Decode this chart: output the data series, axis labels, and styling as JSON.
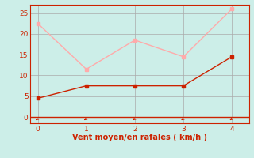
{
  "x": [
    0,
    1,
    2,
    3,
    4
  ],
  "y_wind_avg": [
    4.5,
    7.5,
    7.5,
    7.5,
    14.5
  ],
  "y_wind_gust": [
    22.5,
    11.5,
    18.5,
    14.5,
    26.0
  ],
  "line_color_avg": "#cc2200",
  "line_color_gust": "#ffaaaa",
  "marker_color_avg": "#cc2200",
  "marker_color_gust": "#ffaaaa",
  "xlabel": "Vent moyen/en rafales ( km/h )",
  "xlim": [
    -0.15,
    4.35
  ],
  "ylim": [
    -1.5,
    27
  ],
  "yticks": [
    0,
    5,
    10,
    15,
    20,
    25
  ],
  "xticks": [
    0,
    1,
    2,
    3,
    4
  ],
  "bg_color": "#cceee8",
  "grid_color": "#aaaaaa",
  "tick_color": "#cc2200",
  "label_color": "#cc2200",
  "spine_color": "#cc2200"
}
